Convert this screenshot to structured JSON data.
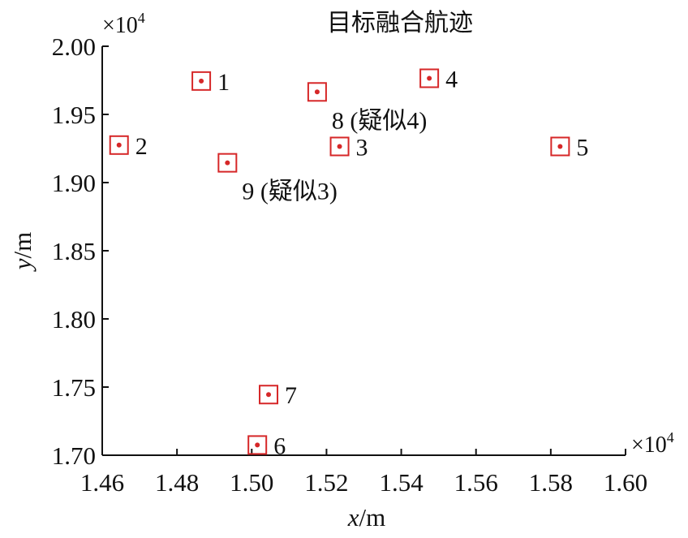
{
  "chart_data": {
    "type": "scatter",
    "title": "目标融合航迹",
    "xlabel_var": "x",
    "xlabel_unit": "/m",
    "ylabel_var": "y",
    "ylabel_unit": "/m",
    "xlim": [
      1.46,
      1.6
    ],
    "ylim": [
      1.7,
      2.0
    ],
    "x_ticks": [
      "1.46",
      "1.48",
      "1.50",
      "1.52",
      "1.54",
      "1.56",
      "1.58",
      "1.60"
    ],
    "y_ticks": [
      "1.70",
      "1.75",
      "1.80",
      "1.85",
      "1.90",
      "1.95",
      "2.00"
    ],
    "x_multiplier": "×10",
    "x_multiplier_exp": "4",
    "y_multiplier": "×10",
    "y_multiplier_exp": "4",
    "grid": false,
    "marker_color": "#d62728",
    "points": [
      {
        "label": "1",
        "x": 1.4865,
        "y": 1.9745
      },
      {
        "label": "2",
        "x": 1.4645,
        "y": 1.9275
      },
      {
        "label": "3",
        "x": 1.5235,
        "y": 1.9265
      },
      {
        "label": "4",
        "x": 1.5475,
        "y": 1.9765
      },
      {
        "label": "5",
        "x": 1.5825,
        "y": 1.9265
      },
      {
        "label": "6",
        "x": 1.5015,
        "y": 1.7075
      },
      {
        "label": "7",
        "x": 1.5045,
        "y": 1.7445
      },
      {
        "label": "8 (疑似4)",
        "x": 1.5175,
        "y": 1.9665
      },
      {
        "label": "9 (疑似3)",
        "x": 1.4935,
        "y": 1.9145
      }
    ]
  }
}
